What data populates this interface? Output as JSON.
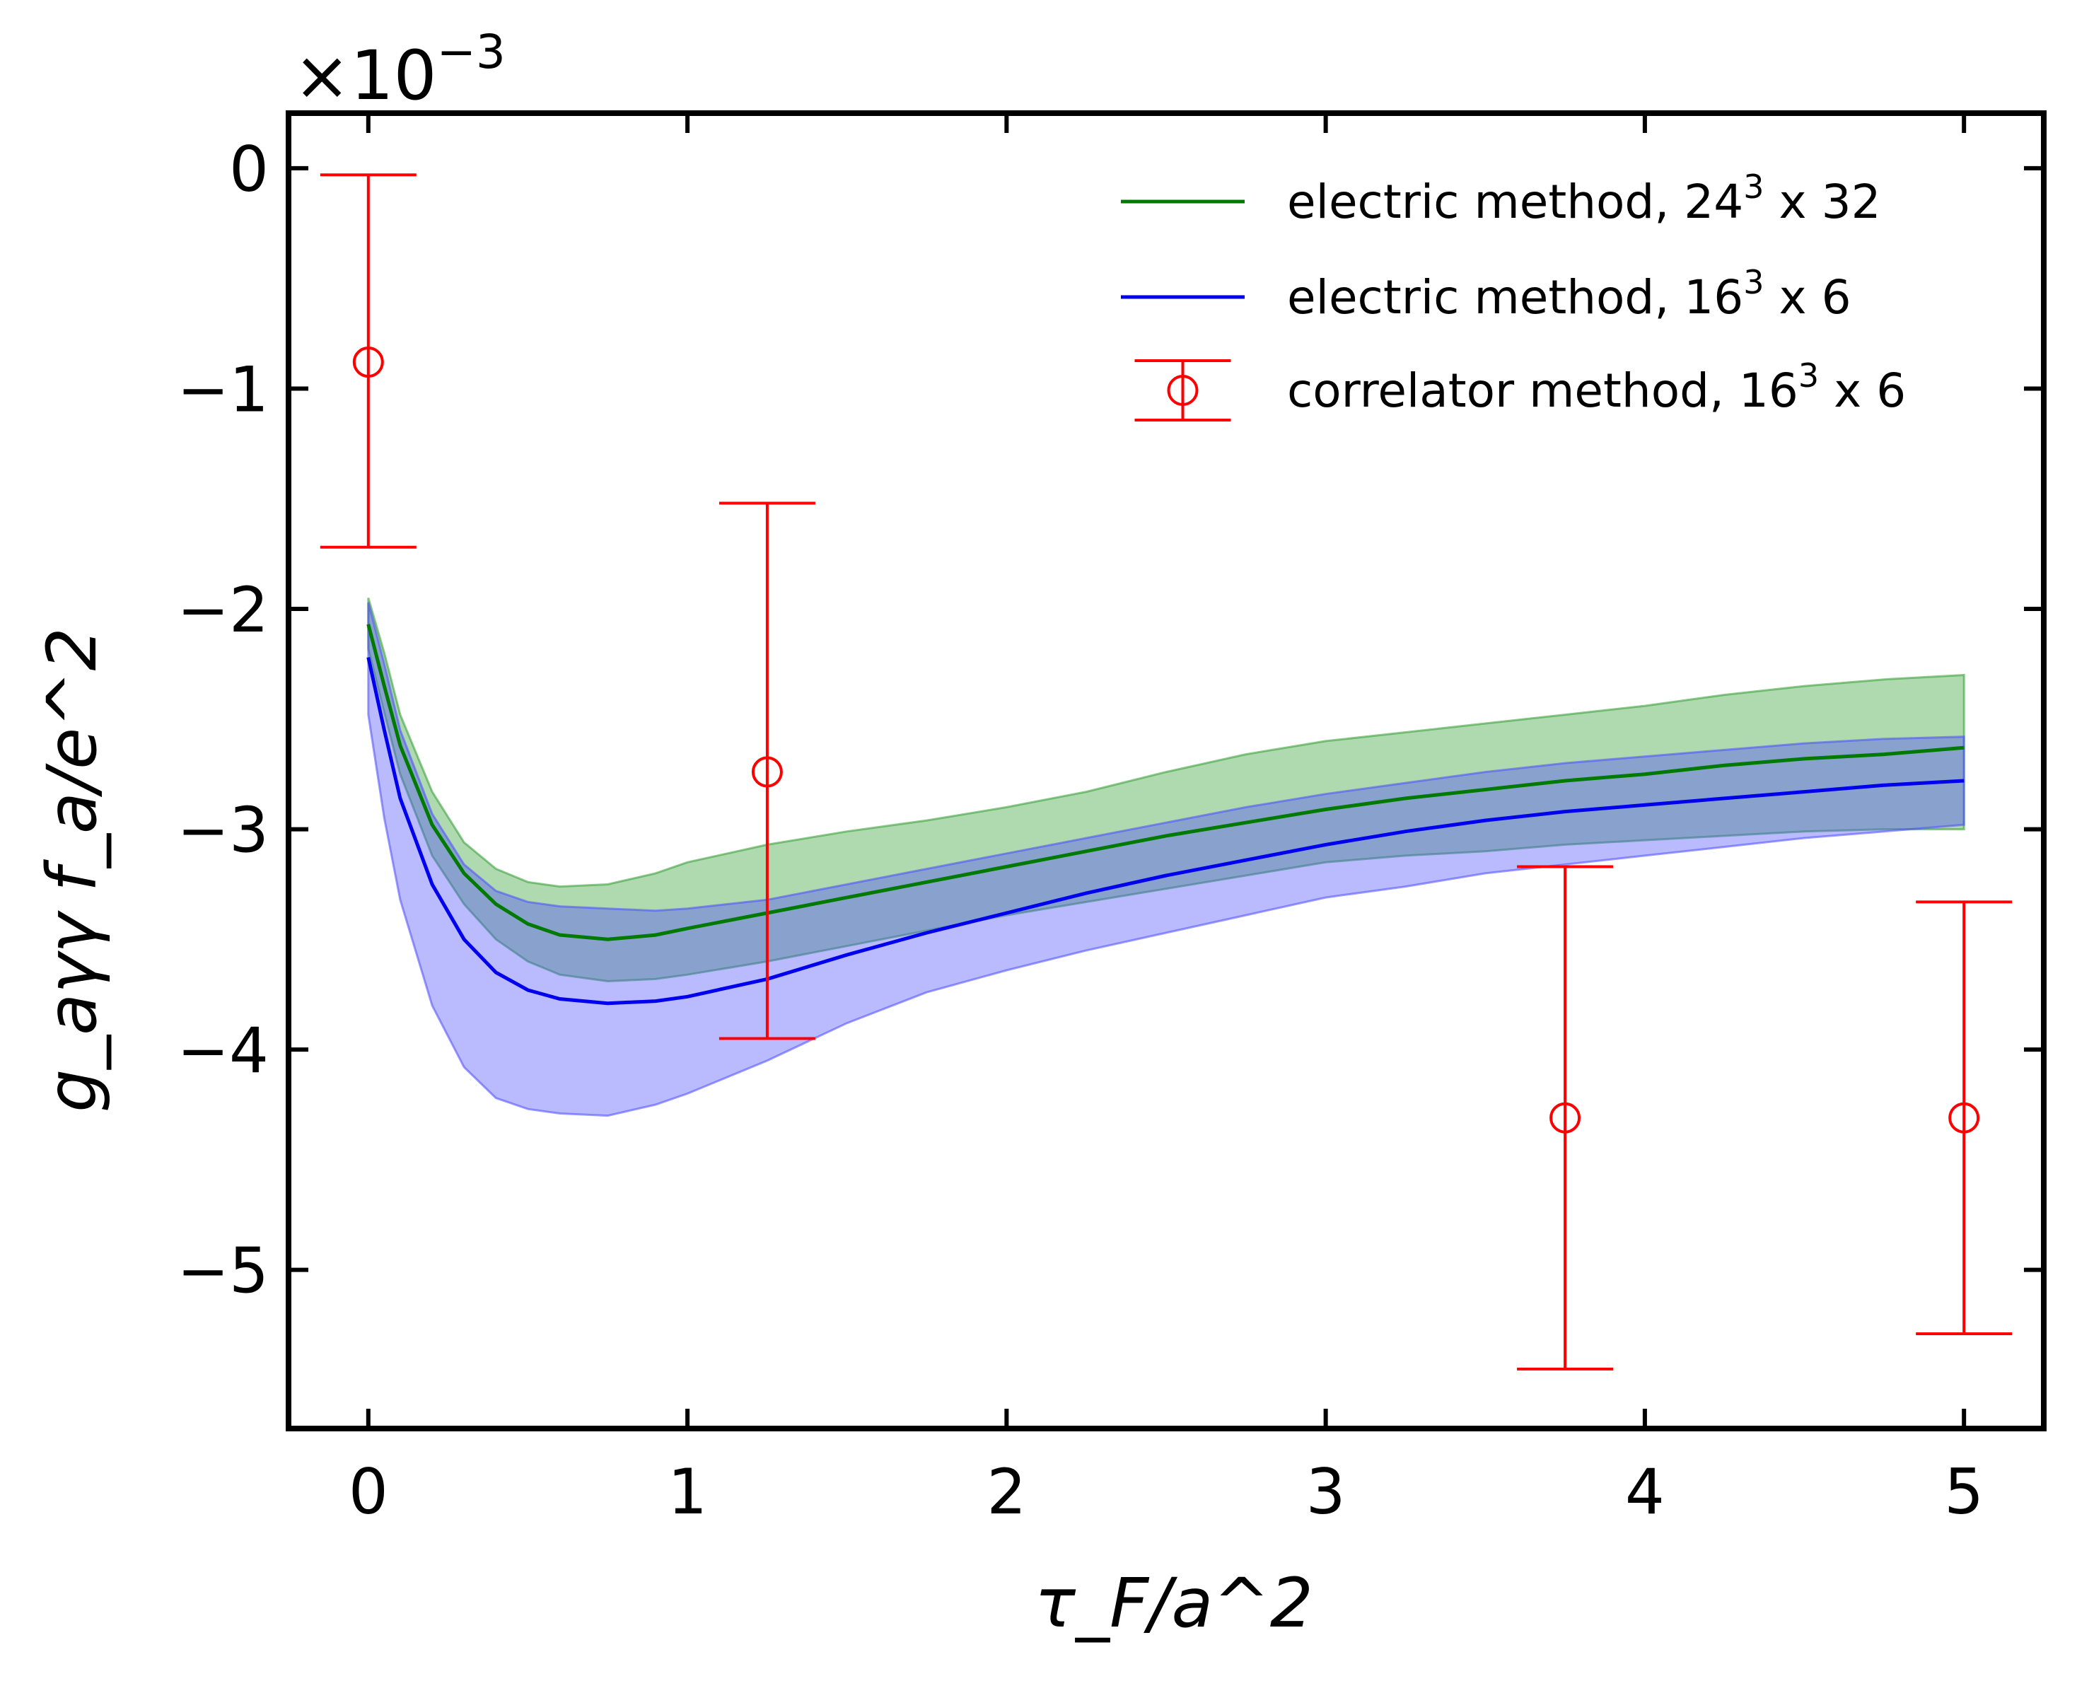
{
  "chart_data": {
    "type": "line",
    "title": "",
    "xlabel": "τ_F/a^2",
    "ylabel": "g_aγγ f_a/e^2",
    "y_multiplier": "×10",
    "y_multiplier_exp": "−3",
    "xlim": [
      -0.25,
      5.25
    ],
    "ylim": [
      -5.72,
      0.25
    ],
    "xticks": [
      0,
      1,
      2,
      3,
      4,
      5
    ],
    "xtick_labels": [
      "0",
      "1",
      "2",
      "3",
      "4",
      "5"
    ],
    "yticks": [
      0,
      -1,
      -2,
      -3,
      -4,
      -5
    ],
    "ytick_labels": [
      "0",
      "−1",
      "−2",
      "−3",
      "−4",
      "−5"
    ],
    "grid": false,
    "legend_position": "top-right",
    "series": [
      {
        "name": "electric method, 24",
        "name_sup": "3",
        "name_suffix": " x 32",
        "kind": "line_band",
        "color": "#007a00",
        "band_color": "#2e9b2e",
        "x": [
          0.0,
          0.05,
          0.1,
          0.2,
          0.3,
          0.4,
          0.5,
          0.6,
          0.75,
          0.9,
          1.0,
          1.25,
          1.5,
          1.75,
          2.0,
          2.25,
          2.5,
          2.75,
          3.0,
          3.25,
          3.5,
          3.75,
          4.0,
          4.25,
          4.5,
          4.75,
          5.0
        ],
        "y": [
          -2.07,
          -2.35,
          -2.62,
          -2.98,
          -3.2,
          -3.34,
          -3.43,
          -3.48,
          -3.5,
          -3.48,
          -3.45,
          -3.38,
          -3.31,
          -3.24,
          -3.17,
          -3.1,
          -3.03,
          -2.97,
          -2.91,
          -2.86,
          -2.82,
          -2.78,
          -2.75,
          -2.71,
          -2.68,
          -2.66,
          -2.63
        ],
        "upper": [
          -1.95,
          -2.2,
          -2.48,
          -2.83,
          -3.06,
          -3.18,
          -3.24,
          -3.26,
          -3.25,
          -3.2,
          -3.15,
          -3.07,
          -3.01,
          -2.96,
          -2.9,
          -2.83,
          -2.74,
          -2.66,
          -2.6,
          -2.56,
          -2.52,
          -2.48,
          -2.44,
          -2.39,
          -2.35,
          -2.32,
          -2.3
        ],
        "lower": [
          -2.18,
          -2.47,
          -2.75,
          -3.12,
          -3.34,
          -3.5,
          -3.6,
          -3.66,
          -3.69,
          -3.68,
          -3.66,
          -3.6,
          -3.53,
          -3.46,
          -3.39,
          -3.33,
          -3.27,
          -3.21,
          -3.15,
          -3.12,
          -3.1,
          -3.07,
          -3.05,
          -3.03,
          -3.01,
          -3.0,
          -3.0
        ]
      },
      {
        "name": "electric method, 16",
        "name_sup": "3",
        "name_suffix": " x 6",
        "kind": "line_band",
        "color": "#0000ee",
        "band_color": "#4a4aff",
        "x": [
          0.0,
          0.05,
          0.1,
          0.2,
          0.3,
          0.4,
          0.5,
          0.6,
          0.75,
          0.9,
          1.0,
          1.25,
          1.5,
          1.75,
          2.0,
          2.25,
          2.5,
          2.75,
          3.0,
          3.25,
          3.5,
          3.75,
          4.0,
          4.25,
          4.5,
          4.75,
          5.0
        ],
        "y": [
          -2.22,
          -2.55,
          -2.86,
          -3.25,
          -3.5,
          -3.65,
          -3.73,
          -3.77,
          -3.79,
          -3.78,
          -3.76,
          -3.68,
          -3.57,
          -3.47,
          -3.38,
          -3.29,
          -3.21,
          -3.14,
          -3.07,
          -3.01,
          -2.96,
          -2.92,
          -2.89,
          -2.86,
          -2.83,
          -2.8,
          -2.78
        ],
        "upper": [
          -1.97,
          -2.25,
          -2.55,
          -2.93,
          -3.16,
          -3.28,
          -3.33,
          -3.35,
          -3.36,
          -3.37,
          -3.36,
          -3.32,
          -3.25,
          -3.18,
          -3.11,
          -3.04,
          -2.97,
          -2.9,
          -2.84,
          -2.79,
          -2.74,
          -2.7,
          -2.67,
          -2.64,
          -2.61,
          -2.59,
          -2.58
        ],
        "lower": [
          -2.48,
          -2.95,
          -3.32,
          -3.8,
          -4.08,
          -4.22,
          -4.27,
          -4.29,
          -4.3,
          -4.25,
          -4.2,
          -4.05,
          -3.88,
          -3.74,
          -3.64,
          -3.55,
          -3.47,
          -3.39,
          -3.31,
          -3.26,
          -3.2,
          -3.16,
          -3.12,
          -3.08,
          -3.04,
          -3.01,
          -2.98
        ]
      },
      {
        "name": "correlator method, 16",
        "name_sup": "3",
        "name_suffix": " x 6",
        "kind": "errorbar",
        "color": "#ff0000",
        "x": [
          0.0,
          1.25,
          3.75,
          5.0
        ],
        "y": [
          -0.88,
          -2.74,
          -4.31,
          -4.31
        ],
        "err_low": [
          -1.72,
          -3.95,
          -5.45,
          -5.29
        ],
        "err_high": [
          -0.03,
          -1.52,
          -3.17,
          -3.33
        ]
      }
    ]
  }
}
